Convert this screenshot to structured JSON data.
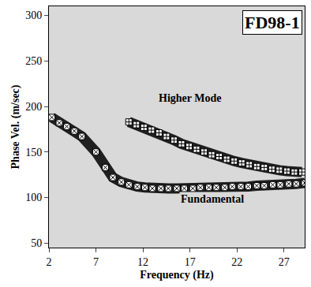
{
  "chart_data": {
    "type": "scatter",
    "title": "FD98-1",
    "x_label": "Frequency (Hz)",
    "y_label": "Phase Vel. (m/sec)",
    "xlim": [
      2,
      29.2
    ],
    "xticks": [
      2,
      7,
      12,
      17,
      22,
      27
    ],
    "ylim": [
      45,
      310
    ],
    "yticks": [
      50,
      100,
      150,
      200,
      250,
      300
    ],
    "grid": false,
    "series": [
      {
        "name": "Fundamental",
        "color": "#000000",
        "marker": "square-x",
        "x": [
          2.3,
          3.1,
          3.9,
          4.7,
          5.5,
          7,
          8,
          8.8,
          9.7,
          10.5,
          11.4,
          12.2,
          13,
          13.9,
          14.7,
          15.6,
          16.4,
          17.3,
          18.1,
          19,
          19.8,
          20.7,
          21.5,
          22.4,
          23.2,
          24.1,
          24.9,
          25.8,
          26.6,
          27.5,
          28.3,
          29.2
        ],
        "values": [
          188,
          182,
          178,
          173,
          167,
          150,
          133,
          122,
          117,
          114,
          112,
          111,
          110,
          110,
          110,
          110,
          110,
          110,
          111,
          111,
          111,
          111,
          112,
          112,
          112,
          113,
          113,
          114,
          114,
          115,
          115,
          116
        ]
      },
      {
        "name": "Higher Mode",
        "color": "#000000",
        "marker": "square-cross",
        "x": [
          10.5,
          11.3,
          12.1,
          12.9,
          13.7,
          14.5,
          15.3,
          16.1,
          16.9,
          17.7,
          18.5,
          19.3,
          20.1,
          20.9,
          21.7,
          22.5,
          23.3,
          24.1,
          24.9,
          25.7,
          26.5,
          27.3,
          28.1,
          28.9
        ],
        "values": [
          183,
          180,
          177,
          174,
          171,
          167,
          163,
          159,
          156,
          153,
          150,
          147,
          145,
          142,
          140,
          138,
          136,
          134,
          133,
          131,
          130,
          129,
          128,
          128
        ]
      }
    ]
  }
}
